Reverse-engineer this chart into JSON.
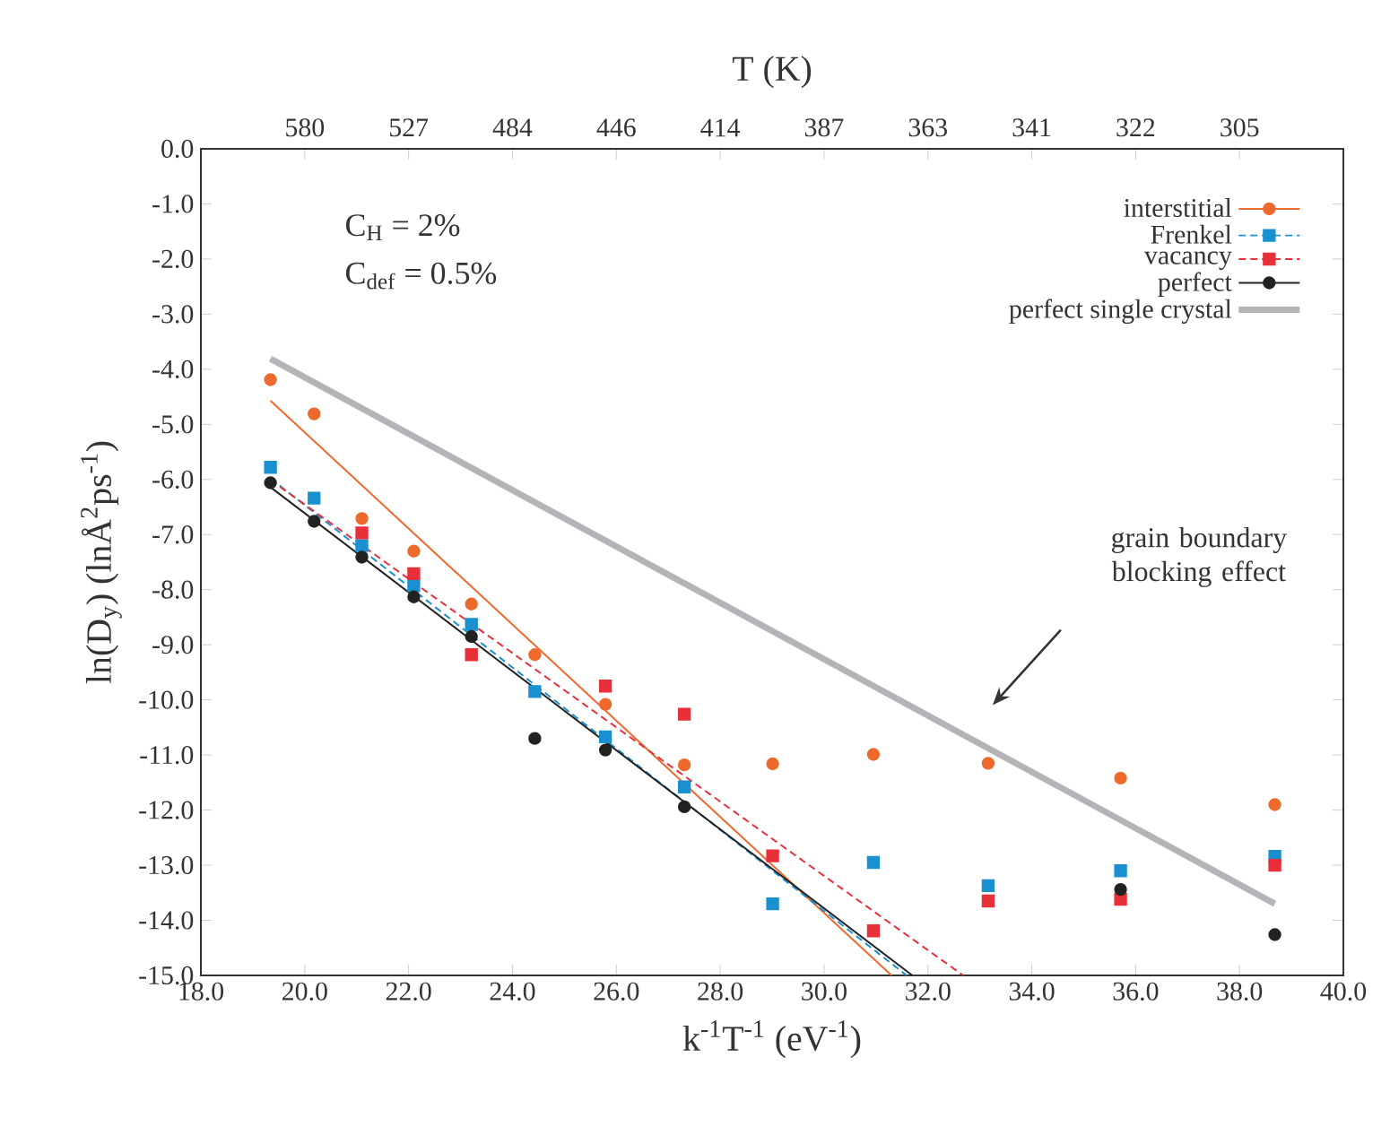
{
  "chart_data": {
    "type": "scatter",
    "xlabel": "k$^{-1}$T$^{-1}$ (eV$^{-1}$)",
    "ylabel": "ln(D$_{y}$) (lnÅ$^{2}$ps$^{-1}$)",
    "x2label": "T (K)",
    "x": [
      19.34,
      20.18,
      21.1,
      22.1,
      23.21,
      24.43,
      25.79,
      27.31,
      29.01,
      30.95,
      33.16,
      35.71,
      38.68
    ],
    "series": [
      {
        "name": "interstitial",
        "color": "#ee6a2c",
        "marker": "circle",
        "line_style": "solid",
        "values": [
          -4.19,
          -4.81,
          -6.71,
          -7.3,
          -8.26,
          -9.18,
          -10.08,
          -11.18,
          -11.16,
          -10.99,
          -11.15,
          -11.42,
          -11.9
        ]
      },
      {
        "name": "Frenkel",
        "color": "#1a90d0",
        "marker": "square",
        "line_style": "dashed",
        "values": [
          -5.78,
          -6.34,
          -7.2,
          -7.93,
          -8.63,
          -9.85,
          -10.67,
          -11.58,
          -13.7,
          -12.95,
          -13.37,
          -13.1,
          -12.84
        ]
      },
      {
        "name": "vacancy",
        "color": "#e8303a",
        "marker": "square",
        "line_style": "dashed",
        "values": [
          null,
          null,
          -6.97,
          -7.71,
          -9.18,
          null,
          -9.75,
          -10.26,
          -12.83,
          -14.19,
          -13.65,
          -13.62,
          -13.0
        ]
      },
      {
        "name": "perfect",
        "color": "#222222",
        "marker": "circle",
        "line_style": "solid",
        "values": [
          -6.06,
          -6.76,
          -7.41,
          -8.13,
          -8.85,
          -10.7,
          -10.91,
          -11.94,
          null,
          null,
          null,
          -13.44,
          -14.26
        ]
      },
      {
        "type": "line",
        "color": "#ee6a2c",
        "line_style": "solid",
        "x": [
          19.34,
          31.3
        ],
        "values": [
          -4.57,
          -15.0
        ]
      },
      {
        "type": "line",
        "color": "#1a90d0",
        "line_style": "dashed",
        "x": [
          19.34,
          31.59
        ],
        "values": [
          -5.98,
          -15.0
        ]
      },
      {
        "type": "line",
        "color": "#e8303a",
        "line_style": "dashed",
        "x": [
          19.34,
          32.68
        ],
        "values": [
          -6.01,
          -15.0
        ]
      },
      {
        "type": "line",
        "color": "#222222",
        "line_style": "solid",
        "x": [
          19.34,
          31.7
        ],
        "values": [
          -6.14,
          -15.0
        ]
      },
      {
        "name": "perfect single crystal",
        "type": "line",
        "color": "#b4b4b8",
        "line_style": "solid",
        "x": [
          19.34,
          38.68
        ],
        "values": [
          -3.81,
          -13.7
        ]
      }
    ],
    "annotations": [
      "C$_{H}$ = 2%",
      "C$_{def}$ = 0.5%",
      "grain boundary blocking effect",
      "580",
      "527",
      "484",
      "446",
      "414",
      "387",
      "363",
      "341",
      "322",
      "305"
    ],
    "xlim": [
      18,
      40
    ],
    "ylim": [
      -15,
      0
    ],
    "xticks": [
      {
        "value": 18,
        "label": "18.0"
      },
      {
        "value": 20,
        "label": "20.0"
      },
      {
        "value": 22,
        "label": "22.0"
      },
      {
        "value": 24,
        "label": "24.0"
      },
      {
        "value": 26,
        "label": "26.0"
      },
      {
        "value": 28,
        "label": "28.0"
      },
      {
        "value": 30,
        "label": "30.0"
      },
      {
        "value": 32,
        "label": "32.0"
      },
      {
        "value": 34,
        "label": "34.0"
      },
      {
        "value": 36,
        "label": "36.0"
      },
      {
        "value": 38,
        "label": "38.0"
      },
      {
        "value": 40,
        "label": "40.0"
      }
    ],
    "yticks": [
      {
        "value": 0,
        "label": "0.0"
      },
      {
        "value": -1,
        "label": "-1.0"
      },
      {
        "value": -2,
        "label": "-2.0"
      },
      {
        "value": -3,
        "label": "-3.0"
      },
      {
        "value": -4,
        "label": "-4.0"
      },
      {
        "value": -5,
        "label": "-5.0"
      },
      {
        "value": -6,
        "label": "-6.0"
      },
      {
        "value": -7,
        "label": "-7.0"
      },
      {
        "value": -8,
        "label": "-8.0"
      },
      {
        "value": -9,
        "label": "-9.0"
      },
      {
        "value": -10,
        "label": "-10.0"
      },
      {
        "value": -11,
        "label": "-11.0"
      },
      {
        "value": -12,
        "label": "-12.0"
      },
      {
        "value": -13,
        "label": "-13.0"
      },
      {
        "value": -14,
        "label": "-14.0"
      },
      {
        "value": -15,
        "label": "-15.0"
      }
    ],
    "legend": "top right",
    "grid": false
  }
}
